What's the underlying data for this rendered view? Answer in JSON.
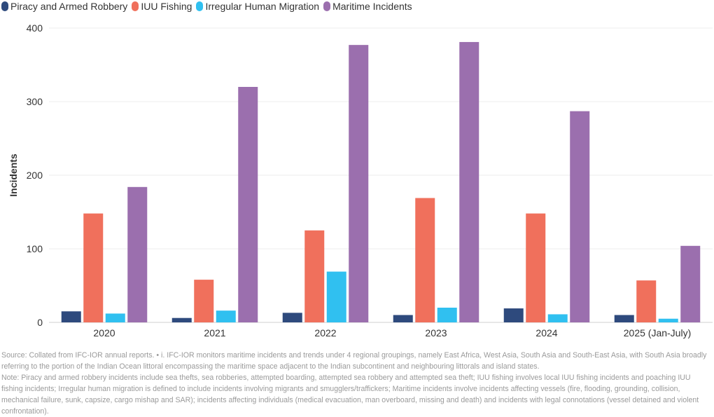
{
  "chart_data": {
    "type": "bar",
    "title": "",
    "xlabel": "",
    "ylabel": "Incidents",
    "ylim": [
      0,
      400
    ],
    "yticks": [
      0,
      100,
      200,
      300,
      400
    ],
    "grid": true,
    "legend_position": "top-left",
    "categories": [
      "2020",
      "2021",
      "2022",
      "2023",
      "2024",
      "2025 (Jan-July)"
    ],
    "series": [
      {
        "name": "Piracy and Armed Robbery",
        "color": "#2e4a7d",
        "values": [
          15,
          6,
          13,
          10,
          19,
          10
        ]
      },
      {
        "name": "IUU Fishing",
        "color": "#f0705c",
        "values": [
          148,
          58,
          125,
          169,
          148,
          57
        ]
      },
      {
        "name": "Irregular Human Migration",
        "color": "#30c0f0",
        "values": [
          12,
          16,
          69,
          20,
          11,
          5
        ]
      },
      {
        "name": "Maritime Incidents",
        "color": "#9b6fae",
        "values": [
          184,
          320,
          377,
          381,
          287,
          104
        ]
      }
    ]
  },
  "footer": {
    "source": "Source: Collated from IFC-IOR annual reports. • i. IFC-IOR monitors maritime incidents and trends under 4 regional groupings, namely East Africa, West Asia, South Asia and South-East Asia, with South Asia broadly referring to the portion of the Indian Ocean littoral encompassing the maritime space adjacent to the Indian subcontinent and neighbouring littorals and island states.",
    "note": "Note: Piracy and armed robbery incidents include sea thefts, sea robberies, attempted boarding, attempted sea robbery and attempted sea theft; IUU fishing involves local IUU fishing incidents and poaching IUU fishing incidents; Irregular human migration is defined to include incidents involving migrants and smugglers/traffickers; Maritime incidents involve incidents affecting vessels (fire, flooding, grounding, collision, mechanical failure, sunk, capsize, cargo mishap and SAR); incidents affecting individuals (medical evacuation, man overboard, missing and death) and incidents with legal connotations (vessel detained and violent confrontation)."
  }
}
